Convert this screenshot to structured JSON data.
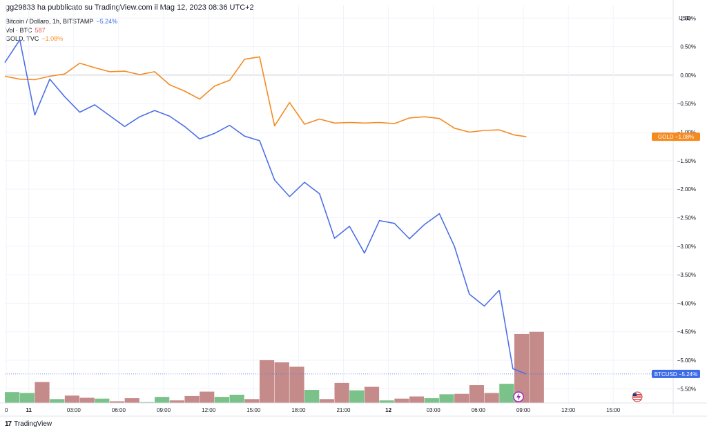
{
  "caption": "gg29833 ha pubblicato su TradingView.com il Mag 12, 2023 08:36 UTC+2",
  "brand": "TradingView",
  "legend": [
    {
      "label": "Bitcoin / Dollaro, 1h, BITSTAMP",
      "value": "−5.24%",
      "color": "#3c6be8"
    },
    {
      "label": "Vol · BTC",
      "value": "587",
      "color": "#d8605b"
    },
    {
      "label": "GOLD, TVC",
      "value": "−1.08%",
      "color": "#f7901e"
    }
  ],
  "colors": {
    "btc": "#4c6fe6",
    "gold": "#f58a1f",
    "vol_up": "#7ac28a",
    "vol_down": "#c48b8a",
    "grid": "#f0f3fa",
    "zero_line": "#c9cbd1"
  },
  "chart_data": {
    "type": "line",
    "y_unit": "%",
    "currency": "USD",
    "ylim": [
      -5.75,
      1.1
    ],
    "ylabels": [
      "1.00%",
      "0.50%",
      "0.00%",
      "−0.50%",
      "−1.00%",
      "−1.50%",
      "−2.00%",
      "−2.50%",
      "−3.00%",
      "−3.50%",
      "−4.00%",
      "−4.50%",
      "−5.00%",
      "−5.50%"
    ],
    "yticks": [
      1.0,
      0.5,
      0.0,
      -0.5,
      -1.0,
      -1.5,
      -2.0,
      -2.5,
      -3.0,
      -3.5,
      -4.0,
      -4.5,
      -5.0,
      -5.5
    ],
    "x_hours_range": [
      -1.6,
      43.0
    ],
    "xticks": [
      {
        "label": "0",
        "hour": -1.5,
        "bold": false
      },
      {
        "label": "11",
        "hour": 0,
        "bold": true
      },
      {
        "label": "03:00",
        "hour": 3,
        "bold": false
      },
      {
        "label": "06:00",
        "hour": 6,
        "bold": false
      },
      {
        "label": "09:00",
        "hour": 9,
        "bold": false
      },
      {
        "label": "12:00",
        "hour": 12,
        "bold": false
      },
      {
        "label": "15:00",
        "hour": 15,
        "bold": false
      },
      {
        "label": "18:00",
        "hour": 18,
        "bold": false
      },
      {
        "label": "21:00",
        "hour": 21,
        "bold": false
      },
      {
        "label": "12",
        "hour": 24,
        "bold": true
      },
      {
        "label": "03:00",
        "hour": 27,
        "bold": false
      },
      {
        "label": "06:00",
        "hour": 30,
        "bold": false
      },
      {
        "label": "09:00",
        "hour": 33,
        "bold": false
      },
      {
        "label": "12:00",
        "hour": 36,
        "bold": false
      },
      {
        "label": "15:00",
        "hour": 39,
        "bold": false
      }
    ],
    "series": [
      {
        "name": "Bitcoin / Dollaro, 1h, BITSTAMP",
        "hours": [
          -1.6,
          -0.6,
          0.4,
          1.4,
          2.4,
          3.4,
          4.4,
          5.4,
          6.4,
          7.4,
          8.4,
          9.4,
          10.4,
          11.4,
          12.4,
          13.4,
          14.4,
          15.4,
          16.4,
          17.4,
          18.4,
          19.4,
          20.4,
          21.4,
          22.4,
          23.4,
          24.4,
          25.4,
          26.4,
          27.4,
          28.4,
          29.4,
          30.4,
          31.4
        ],
        "values": [
          0.22,
          0.62,
          -0.7,
          -0.07,
          -0.38,
          -0.65,
          -0.52,
          -0.71,
          -0.9,
          -0.73,
          -0.62,
          -0.72,
          -0.9,
          -1.12,
          -1.02,
          -0.88,
          -1.07,
          -1.15,
          -1.84,
          -2.13,
          -1.88,
          -2.08,
          -2.86,
          -2.65,
          -3.12,
          -2.55,
          -2.6,
          -2.87,
          -2.62,
          -2.43,
          -3.0,
          -3.84,
          -4.05,
          -3.77
        ]
      },
      {
        "name": "BTCUSD tail",
        "hours": [
          31.4,
          32.3,
          33.2
        ],
        "values": [
          -3.77,
          -5.15,
          -5.24
        ]
      },
      {
        "name": "GOLD, TVC",
        "hours": [
          -1.6,
          -0.6,
          0.4,
          1.4,
          2.4,
          3.4,
          4.4,
          5.4,
          6.4,
          7.4,
          8.4,
          9.4,
          10.4,
          11.4,
          12.4,
          13.4,
          14.4,
          15.4,
          16.4,
          17.4,
          18.4,
          19.4,
          20.4,
          21.4,
          22.4,
          23.4,
          24.4,
          25.4,
          26.4,
          27.4,
          28.4,
          29.4,
          30.4,
          31.4,
          32.4,
          33.2
        ],
        "values": [
          -0.02,
          -0.07,
          -0.08,
          -0.02,
          0.02,
          0.21,
          0.13,
          0.06,
          0.07,
          0.01,
          0.06,
          -0.17,
          -0.28,
          -0.42,
          -0.19,
          -0.09,
          0.28,
          0.32,
          -0.89,
          -0.48,
          -0.86,
          -0.77,
          -0.84,
          -0.83,
          -0.84,
          -0.83,
          -0.85,
          -0.75,
          -0.73,
          -0.76,
          -0.93,
          -1.0,
          -0.97,
          -0.96,
          -1.05,
          -1.08
        ]
      }
    ],
    "volume": {
      "name": "Vol · BTC",
      "bars": [
        {
          "v": 25,
          "up": true
        },
        {
          "v": 23,
          "up": true
        },
        {
          "v": 48,
          "up": false
        },
        {
          "v": 9,
          "up": true
        },
        {
          "v": 17,
          "up": false
        },
        {
          "v": 12,
          "up": false
        },
        {
          "v": 10,
          "up": true
        },
        {
          "v": 4,
          "up": false
        },
        {
          "v": 11,
          "up": false
        },
        {
          "v": 2,
          "up": true
        },
        {
          "v": 14,
          "up": true
        },
        {
          "v": 6,
          "up": false
        },
        {
          "v": 16,
          "up": false
        },
        {
          "v": 26,
          "up": false
        },
        {
          "v": 14,
          "up": true
        },
        {
          "v": 19,
          "up": true
        },
        {
          "v": 9,
          "up": false
        },
        {
          "v": 98,
          "up": false
        },
        {
          "v": 93,
          "up": false
        },
        {
          "v": 83,
          "up": false
        },
        {
          "v": 30,
          "up": true
        },
        {
          "v": 9,
          "up": false
        },
        {
          "v": 46,
          "up": false
        },
        {
          "v": 29,
          "up": true
        },
        {
          "v": 37,
          "up": false
        },
        {
          "v": 6,
          "up": true
        },
        {
          "v": 10,
          "up": false
        },
        {
          "v": 15,
          "up": false
        },
        {
          "v": 11,
          "up": true
        },
        {
          "v": 20,
          "up": true
        },
        {
          "v": 21,
          "up": false
        },
        {
          "v": 41,
          "up": false
        },
        {
          "v": 23,
          "up": false
        },
        {
          "v": 44,
          "up": true
        },
        {
          "v": 158,
          "up": false
        },
        {
          "v": 163,
          "up": false
        }
      ],
      "max": 180
    },
    "price_tags": [
      {
        "name": "GOLD",
        "value": "−1.08%",
        "y": -1.08,
        "color": "#f58a1f"
      },
      {
        "name": "BTCUSD",
        "value": "−5.24%",
        "y": -5.24,
        "color": "#3c6be8"
      }
    ]
  }
}
